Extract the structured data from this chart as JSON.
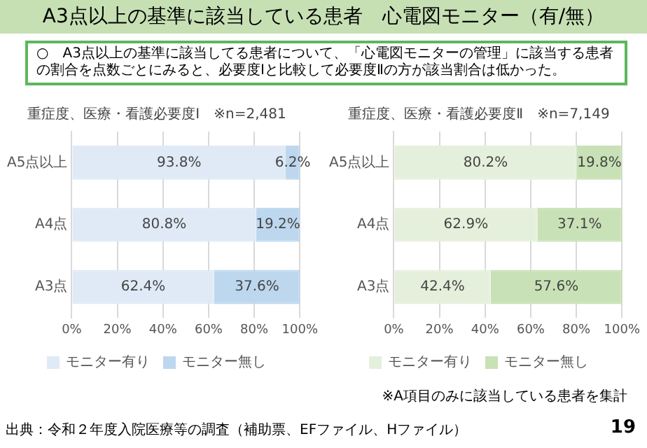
{
  "chart_data": [
    {
      "type": "bar",
      "orientation": "horizontal",
      "stacked": true,
      "title": "重症度、医療・看護必要度Ⅰ　※n=2,481",
      "categories": [
        "A5点以上",
        "A4点",
        "A3点"
      ],
      "series": [
        {
          "name": "モニター有り",
          "color": "#dfeaf6",
          "values": [
            93.8,
            80.8,
            62.4
          ],
          "value_labels": [
            "93.8%",
            "80.8%",
            "62.4%"
          ]
        },
        {
          "name": "モニター無し",
          "color": "#bdd7ee",
          "values": [
            6.2,
            19.2,
            37.6
          ],
          "value_labels": [
            "6.2%",
            "19.2%",
            "37.6%"
          ]
        }
      ],
      "xlim": [
        0,
        100
      ],
      "xticks": [
        {
          "value": 0,
          "label": "0%"
        },
        {
          "value": 20,
          "label": "20%"
        },
        {
          "value": 40,
          "label": "40%"
        },
        {
          "value": 60,
          "label": "60%"
        },
        {
          "value": 80,
          "label": "80%"
        },
        {
          "value": 100,
          "label": "100%"
        }
      ],
      "grid": "x",
      "legend": "bottom",
      "annotations": [
        "A3点以上の基準に該当している患者　心電図モニター（有/無）",
        "○　A3点以上の基準に該当してる患者について、「心電図モニターの管理」に該当する患者の割合を点数ごとにみると、必要度Ⅰと比較して必要度Ⅱの方が該当割合は低かった。"
      ]
    },
    {
      "type": "bar",
      "orientation": "horizontal",
      "stacked": true,
      "title": "重症度、医療・看護必要度Ⅱ　※n=7,149",
      "categories": [
        "A5点以上",
        "A4点",
        "A3点"
      ],
      "series": [
        {
          "name": "モニター有り",
          "color": "#e5f0dc",
          "values": [
            80.2,
            62.9,
            42.4
          ],
          "value_labels": [
            "80.2%",
            "62.9%",
            "42.4%"
          ]
        },
        {
          "name": "モニター無し",
          "color": "#c9e1b6",
          "values": [
            19.8,
            37.1,
            57.6
          ],
          "value_labels": [
            "19.8%",
            "37.1%",
            "57.6%"
          ]
        }
      ],
      "xlim": [
        0,
        100
      ],
      "xticks": [
        {
          "value": 0,
          "label": "0%"
        },
        {
          "value": 20,
          "label": "20%"
        },
        {
          "value": 40,
          "label": "40%"
        },
        {
          "value": 60,
          "label": "60%"
        },
        {
          "value": 80,
          "label": "80%"
        },
        {
          "value": 100,
          "label": "100%"
        }
      ],
      "grid": "x",
      "legend": "bottom",
      "annotations": [
        "※A項目のみに該当している患者を集計",
        "出典：令和２年度入院医療等の調査（補助票、EFファイル、Hファイル）",
        "19"
      ]
    }
  ]
}
